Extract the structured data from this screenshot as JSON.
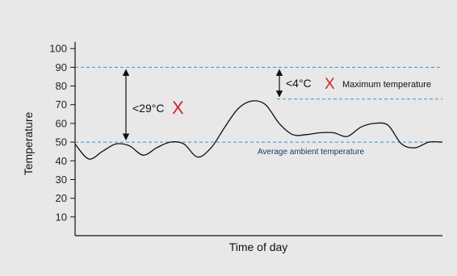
{
  "chart_data": {
    "type": "line",
    "title": "",
    "xlabel": "Time of day",
    "ylabel": "Temperature",
    "ylim": [
      0,
      105
    ],
    "yticks": [
      10,
      20,
      30,
      40,
      50,
      60,
      70,
      80,
      90,
      100
    ],
    "x_ticks_shown": false,
    "grid": false,
    "series": [
      {
        "values": [
          49,
          41,
          45,
          49,
          48,
          43,
          47,
          50,
          49,
          42,
          47,
          58,
          68,
          72,
          70,
          60,
          54,
          54,
          55,
          55,
          53,
          58,
          60,
          59,
          49,
          47,
          50,
          50
        ]
      }
    ],
    "reference_lines": [
      {
        "value": 90,
        "style": "dashed",
        "color": "#3a8fd0"
      },
      {
        "value": 73,
        "style": "dashed",
        "color": "#3a8fd0"
      },
      {
        "value": 50,
        "style": "dashed",
        "color": "#3a8fd0",
        "label": "Average ambient temperature"
      }
    ],
    "annotations": [
      {
        "text": "<29°C",
        "from": 50,
        "to": 90,
        "mark": "X"
      },
      {
        "text": "<4°C",
        "from": 73,
        "to": 90,
        "mark": "X",
        "label": "Maximum temperature"
      }
    ],
    "colors": {
      "background": "#e8e8e8",
      "line": "#111111",
      "reference": "#3a8fd0",
      "mark": "#d2232a",
      "label_blue": "#1a3a66"
    }
  }
}
